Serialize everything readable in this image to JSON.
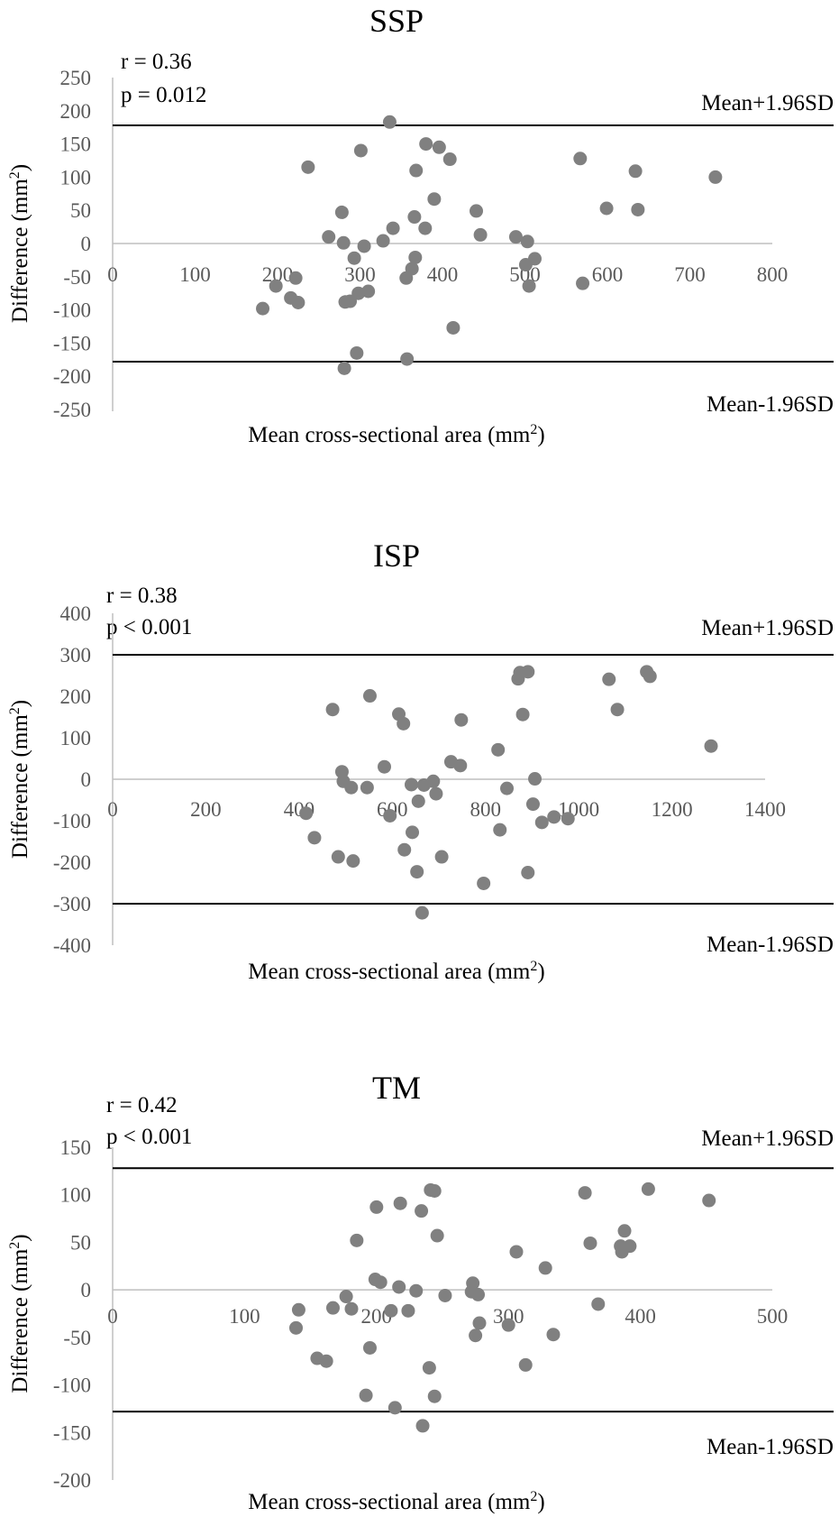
{
  "chart_data": [
    {
      "type": "scatter",
      "title": "SSP",
      "xlabel": "Mean cross-sectional area (mm",
      "xlabel_sup": "2",
      "xlabel_end": ")",
      "ylabel": "Difference (mm",
      "ylabel_sup": "2",
      "ylabel_end": ")",
      "xlim": [
        0,
        800
      ],
      "ylim": [
        -250,
        250
      ],
      "xticks": [
        0,
        100,
        200,
        300,
        400,
        500,
        600,
        700,
        800
      ],
      "yticks": [
        250,
        200,
        150,
        100,
        50,
        0,
        -50,
        -100,
        -150,
        -200,
        -250
      ],
      "corr_r": "r = 0.36",
      "corr_p": "p = 0.012",
      "upper_loa": 178,
      "lower_loa": -178,
      "upper_label": "Mean+1.96SD",
      "lower_label": "Mean-1.96SD",
      "marker_color": "#808080",
      "line_color": "#000000",
      "zero_line_color": "#bfbfbf",
      "points": [
        [
          182,
          -98
        ],
        [
          198,
          -64
        ],
        [
          216,
          -82
        ],
        [
          222,
          -52
        ],
        [
          225,
          -89
        ],
        [
          237,
          115
        ],
        [
          262,
          10
        ],
        [
          278,
          47
        ],
        [
          280,
          1
        ],
        [
          281,
          -188
        ],
        [
          282,
          -88
        ],
        [
          288,
          -87
        ],
        [
          293,
          -22
        ],
        [
          296,
          -165
        ],
        [
          298,
          -75
        ],
        [
          301,
          140
        ],
        [
          305,
          -4
        ],
        [
          310,
          -72
        ],
        [
          328,
          4
        ],
        [
          336,
          183
        ],
        [
          340,
          23
        ],
        [
          356,
          -52
        ],
        [
          357,
          -174
        ],
        [
          363,
          -38
        ],
        [
          366,
          40
        ],
        [
          367,
          -21
        ],
        [
          368,
          110
        ],
        [
          379,
          23
        ],
        [
          380,
          150
        ],
        [
          390,
          67
        ],
        [
          396,
          145
        ],
        [
          409,
          127
        ],
        [
          413,
          -127
        ],
        [
          441,
          49
        ],
        [
          446,
          13
        ],
        [
          489,
          10
        ],
        [
          501,
          -32
        ],
        [
          503,
          3
        ],
        [
          505,
          -64
        ],
        [
          512,
          -23
        ],
        [
          567,
          128
        ],
        [
          570,
          -60
        ],
        [
          599,
          53
        ],
        [
          634,
          109
        ],
        [
          637,
          51
        ],
        [
          731,
          100
        ]
      ]
    },
    {
      "type": "scatter",
      "title": "ISP",
      "xlabel": "Mean cross-sectional area (mm",
      "xlabel_sup": "2",
      "xlabel_end": ")",
      "ylabel": "Difference (mm",
      "ylabel_sup": "2",
      "ylabel_end": ")",
      "xlim": [
        0,
        1400
      ],
      "ylim": [
        -400,
        400
      ],
      "xticks": [
        0,
        200,
        400,
        600,
        800,
        1000,
        1200,
        1400
      ],
      "yticks": [
        400,
        300,
        200,
        100,
        0,
        -100,
        -200,
        -300,
        -400
      ],
      "corr_r": "r = 0.38",
      "corr_p": "p < 0.001",
      "upper_loa": 300,
      "lower_loa": -300,
      "upper_label": "Mean+1.96SD",
      "lower_label": "Mean-1.96SD",
      "marker_color": "#808080",
      "line_color": "#000000",
      "zero_line_color": "#bfbfbf",
      "points": [
        [
          415,
          -82
        ],
        [
          433,
          -141
        ],
        [
          472,
          168
        ],
        [
          484,
          -187
        ],
        [
          492,
          18
        ],
        [
          495,
          -5
        ],
        [
          512,
          -20
        ],
        [
          516,
          -197
        ],
        [
          546,
          -20
        ],
        [
          552,
          201
        ],
        [
          583,
          30
        ],
        [
          595,
          -88
        ],
        [
          614,
          157
        ],
        [
          624,
          134
        ],
        [
          626,
          -170
        ],
        [
          641,
          -13
        ],
        [
          643,
          -128
        ],
        [
          653,
          -223
        ],
        [
          656,
          -53
        ],
        [
          664,
          -322
        ],
        [
          668,
          -14
        ],
        [
          688,
          -5
        ],
        [
          694,
          -35
        ],
        [
          706,
          -187
        ],
        [
          726,
          42
        ],
        [
          746,
          33
        ],
        [
          748,
          143
        ],
        [
          796,
          -251
        ],
        [
          827,
          71
        ],
        [
          831,
          -122
        ],
        [
          846,
          -22
        ],
        [
          870,
          242
        ],
        [
          874,
          257
        ],
        [
          880,
          156
        ],
        [
          891,
          259
        ],
        [
          891,
          -225
        ],
        [
          902,
          -60
        ],
        [
          906,
          1
        ],
        [
          921,
          -104
        ],
        [
          947,
          -91
        ],
        [
          977,
          -95
        ],
        [
          1065,
          241
        ],
        [
          1083,
          168
        ],
        [
          1146,
          259
        ],
        [
          1153,
          248
        ],
        [
          1284,
          80
        ]
      ]
    },
    {
      "type": "scatter",
      "title": "TM",
      "xlabel": "Mean cross-sectional area (mm",
      "xlabel_sup": "2",
      "xlabel_end": ")",
      "ylabel": "Difference (mm",
      "ylabel_sup": "2",
      "ylabel_end": ")",
      "xlim": [
        0,
        500
      ],
      "ylim": [
        -200,
        150
      ],
      "xticks": [
        0,
        100,
        200,
        300,
        400,
        500
      ],
      "yticks": [
        150,
        100,
        50,
        0,
        -50,
        -100,
        -150,
        -200
      ],
      "corr_r": "r = 0.42",
      "corr_p": "p < 0.001",
      "upper_loa": 128,
      "lower_loa": -128,
      "upper_label": "Mean+1.96SD",
      "lower_label": "Mean-1.96SD",
      "marker_color": "#808080",
      "line_color": "#000000",
      "zero_line_color": "#bfbfbf",
      "points": [
        [
          139,
          -40
        ],
        [
          141,
          -21
        ],
        [
          155,
          -72
        ],
        [
          162,
          -75
        ],
        [
          167,
          -19
        ],
        [
          177,
          -7
        ],
        [
          181,
          -20
        ],
        [
          185,
          52
        ],
        [
          192,
          -111
        ],
        [
          195,
          -61
        ],
        [
          199,
          11
        ],
        [
          200,
          87
        ],
        [
          203,
          8
        ],
        [
          211,
          -22
        ],
        [
          214,
          -124
        ],
        [
          217,
          3
        ],
        [
          218,
          91
        ],
        [
          224,
          -22
        ],
        [
          230,
          -1
        ],
        [
          234,
          83
        ],
        [
          235,
          -143
        ],
        [
          240,
          -82
        ],
        [
          241,
          105
        ],
        [
          244,
          104
        ],
        [
          244,
          -112
        ],
        [
          246,
          57
        ],
        [
          252,
          -6
        ],
        [
          272,
          -2
        ],
        [
          273,
          7
        ],
        [
          275,
          -48
        ],
        [
          277,
          -5
        ],
        [
          278,
          -35
        ],
        [
          300,
          -37
        ],
        [
          306,
          40
        ],
        [
          313,
          -79
        ],
        [
          328,
          23
        ],
        [
          334,
          -47
        ],
        [
          358,
          102
        ],
        [
          362,
          49
        ],
        [
          368,
          -15
        ],
        [
          385,
          46
        ],
        [
          386,
          40
        ],
        [
          388,
          62
        ],
        [
          392,
          46
        ],
        [
          406,
          106
        ],
        [
          452,
          94
        ]
      ]
    }
  ]
}
